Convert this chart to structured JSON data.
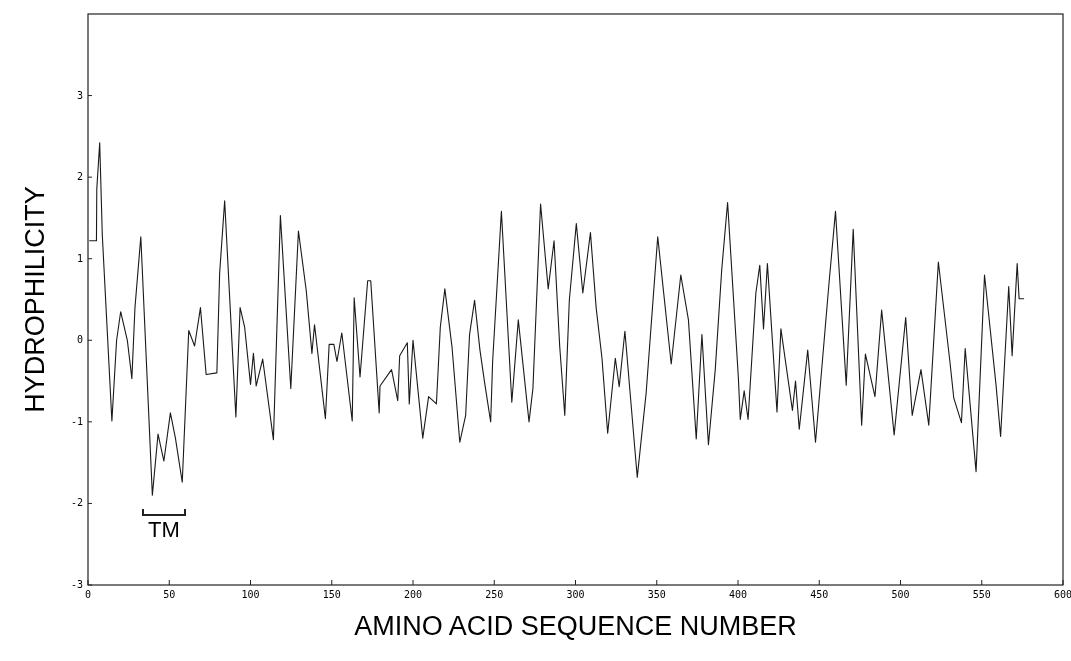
{
  "chart_data": {
    "type": "line",
    "xlabel": "AMINO ACID SEQUENCE NUMBER",
    "ylabel": "HYDROPHILICITY",
    "xlim": [
      0,
      600
    ],
    "ylim": [
      -3,
      4
    ],
    "xticks": [
      0,
      50,
      100,
      150,
      200,
      250,
      300,
      350,
      400,
      450,
      500,
      550,
      600
    ],
    "yticks": [
      -3,
      -2,
      -1,
      0,
      1,
      2,
      3
    ],
    "grid": false,
    "marker": "none",
    "line_style": "solid",
    "annotations": [
      "TM"
    ],
    "series": [
      {
        "color": "#1a1a1a",
        "x": [
          1,
          5.2,
          5.4,
          7.2,
          8.8,
          14.7,
          17.6,
          20.1,
          24.2,
          27,
          28.9,
          32.5,
          39.6,
          43.1,
          46.7,
          50.7,
          53.8,
          58,
          62,
          65.6,
          69.2,
          72.7,
          79.3,
          81,
          84.1,
          86.9,
          91,
          93.6,
          96.4,
          100,
          101.8,
          103.5,
          107.5,
          114.1,
          118.4,
          124.8,
          129.5,
          134.3,
          137.8,
          139.4,
          146.1,
          148.4,
          151.3,
          153.2,
          156.2,
          162.6,
          163.8,
          167.4,
          172.1,
          174,
          179.2,
          179.7,
          186.8,
          190.6,
          191.8,
          196.5,
          197.7,
          200,
          206,
          209.6,
          214.4,
          216.8,
          219.6,
          224,
          228.8,
          232.4,
          234.8,
          237.9,
          241.2,
          244.3,
          247.8,
          249,
          254.4,
          260.8,
          264.8,
          271.4,
          273.8,
          278.5,
          283.2,
          286.8,
          290.3,
          293.4,
          296.2,
          300.5,
          304.5,
          309.2,
          312.7,
          316.3,
          319.8,
          324.5,
          326.9,
          330.4,
          338,
          343.5,
          350.6,
          358.9,
          364.8,
          369.5,
          374.3,
          377.8,
          381.8,
          386,
          390,
          393.6,
          400.2,
          401.4,
          403.8,
          406.2,
          411,
          413.4,
          415.7,
          418.1,
          424,
          426.4,
          433.5,
          435.4,
          437.7,
          442.9,
          447.7,
          456,
          460,
          466.6,
          470.9,
          476.1,
          478.4,
          484.3,
          488.4,
          496.1,
          503.2,
          507.2,
          512.6,
          517.4,
          523.3,
          530.4,
          532.8,
          537.5,
          539.8,
          546.5,
          551.7,
          558.8,
          561.6,
          563.5,
          566.6,
          568.7,
          571.8,
          573,
          575.8
        ],
        "values": [
          1.22,
          1.22,
          1.85,
          2.42,
          1.29,
          -0.99,
          0,
          0.35,
          0,
          -0.47,
          0.4,
          1.27,
          -1.9,
          -1.15,
          -1.48,
          -0.89,
          -1.2,
          -1.74,
          0.12,
          -0.07,
          0.4,
          -0.42,
          -0.4,
          0.82,
          1.71,
          0.63,
          -0.94,
          0.4,
          0.16,
          -0.54,
          -0.16,
          -0.56,
          -0.23,
          -1.22,
          1.53,
          -0.59,
          1.34,
          0.61,
          -0.16,
          0.19,
          -0.96,
          -0.05,
          -0.05,
          -0.26,
          0.09,
          -0.99,
          0.52,
          -0.45,
          0.73,
          0.73,
          -0.89,
          -0.56,
          -0.36,
          -0.74,
          -0.19,
          -0.03,
          -0.78,
          0,
          -1.2,
          -0.69,
          -0.78,
          0.16,
          0.63,
          -0.08,
          -1.25,
          -0.92,
          0.07,
          0.49,
          -0.12,
          -0.55,
          -1,
          -0.26,
          1.58,
          -0.76,
          0.25,
          -1,
          -0.59,
          1.67,
          0.63,
          1.22,
          -0.08,
          -0.92,
          0.49,
          1.43,
          0.58,
          1.32,
          0.4,
          -0.22,
          -1.14,
          -0.22,
          -0.57,
          0.11,
          -1.68,
          -0.64,
          1.27,
          -0.29,
          0.8,
          0.25,
          -1.21,
          0.07,
          -1.28,
          -0.36,
          0.87,
          1.69,
          -0.45,
          -0.97,
          -0.62,
          -0.97,
          0.58,
          0.92,
          0.14,
          0.94,
          -0.88,
          0.14,
          -0.86,
          -0.5,
          -1.09,
          -0.12,
          -1.25,
          0.7,
          1.58,
          -0.55,
          1.36,
          -1.04,
          -0.17,
          -0.69,
          0.37,
          -1.16,
          0.28,
          -0.92,
          -0.36,
          -1.04,
          0.96,
          -0.26,
          -0.71,
          -1.01,
          -0.1,
          -1.61,
          0.8,
          -0.55,
          -1.18,
          -0.48,
          0.66,
          -0.19,
          0.94,
          0.51,
          0.51
        ]
      }
    ]
  }
}
